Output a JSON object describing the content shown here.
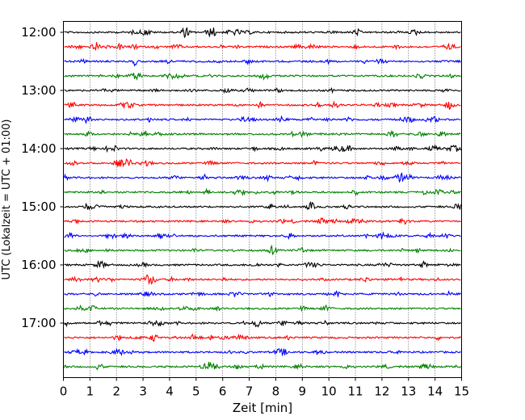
{
  "chart_data": {
    "type": "line",
    "title": "",
    "xlabel": "Zeit  [min]",
    "ylabel": "UTC (Lokalzeit = UTC + 01:00)",
    "xlim": [
      0,
      15
    ],
    "x_ticks": [
      "0",
      "1",
      "2",
      "3",
      "4",
      "5",
      "6",
      "7",
      "8",
      "9",
      "10",
      "11",
      "12",
      "13",
      "14",
      "15"
    ],
    "y_tick_labels": [
      "12:00",
      "13:00",
      "14:00",
      "15:00",
      "16:00",
      "17:00"
    ],
    "grid": "vertical dotted lines at each minute",
    "trace_interval_minutes": 15,
    "trace_start_times": [
      "12:00",
      "12:15",
      "12:30",
      "12:45",
      "13:00",
      "13:15",
      "13:30",
      "13:45",
      "14:00",
      "14:15",
      "14:30",
      "14:45",
      "15:00",
      "15:15",
      "15:30",
      "15:45",
      "16:00",
      "16:15",
      "16:30",
      "16:45",
      "17:00",
      "17:15",
      "17:30",
      "17:45"
    ],
    "color_cycle": [
      "#000000",
      "#ff0000",
      "#0000ff",
      "#008000"
    ]
  }
}
